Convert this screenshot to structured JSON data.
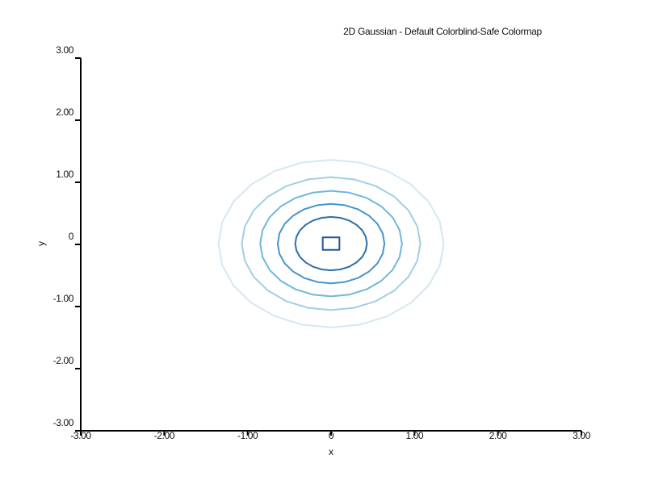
{
  "chart_data": {
    "type": "contour",
    "title": "2D Gaussian - Default Colorblind-Safe Colormap",
    "xlabel": "x",
    "ylabel": "y",
    "xlim": [
      -3,
      3
    ],
    "ylim": [
      -3,
      3
    ],
    "x_ticks": [
      -3,
      -2,
      -1,
      0,
      1,
      2,
      3
    ],
    "x_tick_labels": [
      "-3.00",
      "-2.00",
      "-1.00",
      "0",
      "1.00",
      "2.00",
      "3.00"
    ],
    "y_ticks": [
      3,
      2,
      1,
      0,
      -1,
      -2,
      -3
    ],
    "y_tick_labels": [
      "3.00",
      "2.00",
      "1.00",
      "0",
      "-1.00",
      "-2.00",
      "-3.00"
    ],
    "grid": false,
    "contours": [
      {
        "radius": 1.35,
        "color": "#d4e8f0"
      },
      {
        "radius": 1.07,
        "color": "#9fcfe3"
      },
      {
        "radius": 0.85,
        "color": "#6db8db"
      },
      {
        "radius": 0.64,
        "color": "#4795c9"
      },
      {
        "radius": 0.43,
        "color": "#2d6fa8"
      },
      {
        "radius": 0.1,
        "color": "#1f5a94",
        "shape": "square"
      }
    ]
  }
}
